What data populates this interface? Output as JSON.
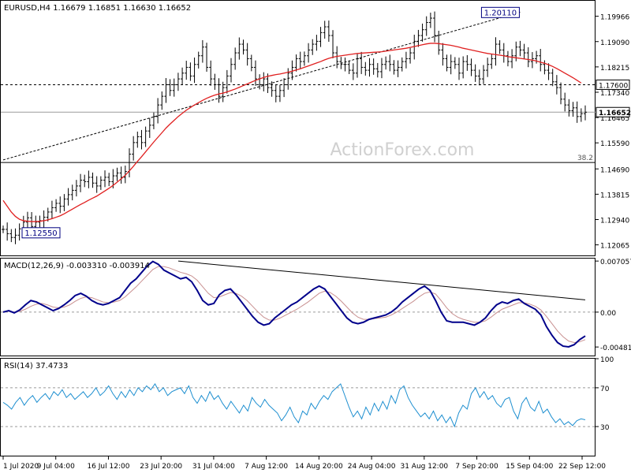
{
  "chart_data": {
    "type": "line",
    "panels": {
      "price": {
        "header": "EURUSD,H4  1.16679 1.16851 1.16630 1.16652",
        "ylim": [
          1.117,
          1.205
        ],
        "y_ticks": [
          "1.19966",
          "1.19090",
          "1.18215",
          "1.17340",
          "1.16465",
          "1.15590",
          "1.14690",
          "1.13815",
          "1.12940",
          "1.12065"
        ],
        "y_tick_values": [
          1.19966,
          1.1909,
          1.18215,
          1.1734,
          1.16465,
          1.1559,
          1.1469,
          1.13815,
          1.1294,
          1.12065
        ],
        "current_price_label": "1.16652",
        "current_price": 1.16652,
        "level_label": "1.17600",
        "level": 1.176,
        "fib_label": "38.2",
        "fib_level": 1.1491,
        "high_annotation": "1.20110",
        "high_value": 1.2011,
        "low_annotation": "1.12550",
        "low_value": 1.1255,
        "watermark": "ActionForex.com",
        "trendline": [
          [
            0,
            1.15
          ],
          [
            127,
            1.2011
          ]
        ],
        "close": [
          1.126,
          1.1245,
          1.1232,
          1.124,
          1.1262,
          1.1285,
          1.13,
          1.127,
          1.1285,
          1.129,
          1.1302,
          1.132,
          1.1335,
          1.135,
          1.134,
          1.1365,
          1.138,
          1.1395,
          1.141,
          1.143,
          1.1425,
          1.144,
          1.142,
          1.141,
          1.143,
          1.144,
          1.1425,
          1.1445,
          1.1455,
          1.144,
          1.146,
          1.152,
          1.156,
          1.158,
          1.156,
          1.16,
          1.162,
          1.165,
          1.169,
          1.172,
          1.176,
          1.174,
          1.176,
          1.178,
          1.18,
          1.182,
          1.179,
          1.183,
          1.186,
          1.189,
          1.182,
          1.178,
          1.176,
          1.172,
          1.175,
          1.179,
          1.183,
          1.187,
          1.19,
          1.188,
          1.185,
          1.182,
          1.178,
          1.176,
          1.178,
          1.175,
          1.174,
          1.172,
          1.174,
          1.176,
          1.18,
          1.182,
          1.185,
          1.184,
          1.186,
          1.188,
          1.19,
          1.191,
          1.194,
          1.196,
          1.193,
          1.187,
          1.184,
          1.183,
          1.183,
          1.181,
          1.18,
          1.185,
          1.182,
          1.181,
          1.183,
          1.1815,
          1.1805,
          1.183,
          1.184,
          1.183,
          1.181,
          1.182,
          1.184,
          1.185,
          1.187,
          1.191,
          1.193,
          1.195,
          1.1975,
          1.199,
          1.193,
          1.188,
          1.185,
          1.182,
          1.184,
          1.183,
          1.18,
          1.184,
          1.183,
          1.181,
          1.179,
          1.178,
          1.181,
          1.183,
          1.185,
          1.19,
          1.188,
          1.186,
          1.184,
          1.186,
          1.189,
          1.188,
          1.187,
          1.184,
          1.185,
          1.186,
          1.183,
          1.181,
          1.18,
          1.177,
          1.175,
          1.171,
          1.169,
          1.167,
          1.168,
          1.165,
          1.166,
          1.1665
        ],
        "ma": [
          1.136,
          1.134,
          1.132,
          1.1305,
          1.1295,
          1.129,
          1.1288,
          1.1287,
          1.1287,
          1.1288,
          1.129,
          1.1293,
          1.1297,
          1.1302,
          1.1307,
          1.1314,
          1.1322,
          1.133,
          1.1338,
          1.1346,
          1.1353,
          1.1361,
          1.1368,
          1.1375,
          1.1384,
          1.1393,
          1.1402,
          1.1412,
          1.1423,
          1.1435,
          1.1447,
          1.1462,
          1.1478,
          1.1495,
          1.1511,
          1.1528,
          1.1545,
          1.1562,
          1.1578,
          1.1594,
          1.161,
          1.1624,
          1.1637,
          1.165,
          1.1661,
          1.1672,
          1.1681,
          1.169,
          1.1698,
          1.1706,
          1.1713,
          1.1719,
          1.1724,
          1.1728,
          1.1731,
          1.1735,
          1.174,
          1.1745,
          1.1751,
          1.1757,
          1.1763,
          1.1769,
          1.1775,
          1.178,
          1.1785,
          1.1789,
          1.1792,
          1.1795,
          1.1797,
          1.18,
          1.1803,
          1.1807,
          1.1811,
          1.1815,
          1.182,
          1.1825,
          1.183,
          1.1835,
          1.184,
          1.1846,
          1.1851,
          1.1855,
          1.1858,
          1.186,
          1.1862,
          1.1864,
          1.1866,
          1.1868,
          1.1869,
          1.187,
          1.1871,
          1.1872,
          1.1873,
          1.1874,
          1.1876,
          1.1878,
          1.188,
          1.1882,
          1.1884,
          1.1886,
          1.1889,
          1.1892,
          1.1895,
          1.1898,
          1.1901,
          1.1903,
          1.1903,
          1.1902,
          1.19,
          1.1898,
          1.1896,
          1.1893,
          1.189,
          1.1886,
          1.1883,
          1.188,
          1.1877,
          1.1874,
          1.1871,
          1.1868,
          1.1866,
          1.1864,
          1.1862,
          1.186,
          1.1857,
          1.1855,
          1.1853,
          1.1851,
          1.1849,
          1.1847,
          1.1845,
          1.1842,
          1.1838,
          1.1834,
          1.1829,
          1.1823,
          1.1816,
          1.1808,
          1.18,
          1.1792,
          1.1784,
          1.1775,
          1.1766
        ]
      },
      "macd": {
        "header": "MACD(12,26,9) -0.003310 -0.003914",
        "ylim": [
          -0.006,
          0.0074
        ],
        "y_ticks": [
          "0.007057",
          "0.00",
          "-0.004818"
        ],
        "y_tick_values": [
          0.007057,
          0.0,
          -0.004818
        ],
        "macd": [
          0.0,
          0.0002,
          -0.0001,
          0.0003,
          0.001,
          0.0016,
          0.0014,
          0.001,
          0.0006,
          0.0002,
          0.0005,
          0.001,
          0.0016,
          0.0023,
          0.0026,
          0.0022,
          0.0016,
          0.0012,
          0.001,
          0.0012,
          0.0016,
          0.002,
          0.003,
          0.004,
          0.0046,
          0.0055,
          0.0064,
          0.007,
          0.0066,
          0.0058,
          0.0054,
          0.005,
          0.0046,
          0.0048,
          0.0042,
          0.003,
          0.0016,
          0.001,
          0.0012,
          0.0024,
          0.003,
          0.0032,
          0.0024,
          0.0014,
          0.0004,
          -0.0006,
          -0.0014,
          -0.0018,
          -0.0016,
          -0.0008,
          -0.0002,
          0.0004,
          0.001,
          0.0014,
          0.002,
          0.0026,
          0.0032,
          0.0036,
          0.0032,
          0.0022,
          0.0012,
          0.0002,
          -0.0008,
          -0.0014,
          -0.0016,
          -0.0014,
          -0.001,
          -0.0008,
          -0.0006,
          -0.0004,
          0.0,
          0.0006,
          0.0014,
          0.002,
          0.0026,
          0.0032,
          0.0036,
          0.003,
          0.0016,
          0.0,
          -0.0012,
          -0.0014,
          -0.0014,
          -0.0014,
          -0.0016,
          -0.0018,
          -0.0014,
          -0.0008,
          0.0002,
          0.001,
          0.0014,
          0.0012,
          0.0016,
          0.0018,
          0.0012,
          0.0008,
          0.0004,
          -0.0004,
          -0.002,
          -0.0032,
          -0.0042,
          -0.0047,
          -0.0048,
          -0.0045,
          -0.0038,
          -0.0033
        ],
        "signal": [
          0.0001,
          0.0001,
          0.0,
          0.0001,
          0.0004,
          0.0008,
          0.0011,
          0.0012,
          0.001,
          0.0007,
          0.0006,
          0.0007,
          0.001,
          0.0015,
          0.0019,
          0.0021,
          0.002,
          0.0017,
          0.0014,
          0.0013,
          0.0014,
          0.0016,
          0.0021,
          0.0028,
          0.0035,
          0.0043,
          0.0051,
          0.0059,
          0.0063,
          0.0063,
          0.0061,
          0.0058,
          0.0055,
          0.0053,
          0.005,
          0.0044,
          0.0035,
          0.0026,
          0.002,
          0.0021,
          0.0024,
          0.0027,
          0.0026,
          0.0022,
          0.0016,
          0.0008,
          0.0,
          -0.0007,
          -0.0011,
          -0.0011,
          -0.0008,
          -0.0004,
          0.0,
          0.0004,
          0.0009,
          0.0014,
          0.002,
          0.0026,
          0.0029,
          0.0027,
          0.0022,
          0.0015,
          0.0007,
          -0.0001,
          -0.0007,
          -0.001,
          -0.001,
          -0.0009,
          -0.0008,
          -0.0007,
          -0.0004,
          0.0,
          0.0005,
          0.001,
          0.0015,
          0.0021,
          0.0026,
          0.0028,
          0.0025,
          0.0016,
          0.0006,
          -0.0002,
          -0.0007,
          -0.001,
          -0.0012,
          -0.0014,
          -0.0014,
          -0.0012,
          -0.0007,
          -0.0001,
          0.0004,
          0.0007,
          0.001,
          0.0013,
          0.0013,
          0.0011,
          0.0008,
          0.0003,
          -0.0006,
          -0.0016,
          -0.0026,
          -0.0034,
          -0.004,
          -0.0042,
          -0.0041,
          -0.0038
        ],
        "trendline": [
          [
            0.007057,
            0
          ],
          [
            0.0017,
            1
          ]
        ]
      },
      "rsi": {
        "header": "RSI(14) 37.4733",
        "ylim": [
          0,
          100
        ],
        "y_ticks": [
          "100",
          "70",
          "30"
        ],
        "y_tick_values": [
          100,
          70,
          30
        ],
        "values": [
          55,
          52,
          48,
          55,
          60,
          52,
          58,
          62,
          55,
          60,
          64,
          58,
          66,
          62,
          68,
          60,
          64,
          58,
          62,
          66,
          60,
          64,
          70,
          62,
          66,
          72,
          64,
          58,
          66,
          60,
          68,
          62,
          70,
          66,
          72,
          68,
          74,
          66,
          70,
          62,
          66,
          68,
          70,
          64,
          72,
          60,
          54,
          62,
          56,
          66,
          58,
          62,
          54,
          48,
          56,
          50,
          44,
          52,
          46,
          60,
          54,
          50,
          58,
          52,
          48,
          44,
          36,
          42,
          50,
          40,
          34,
          46,
          42,
          54,
          48,
          56,
          62,
          58,
          66,
          70,
          74,
          62,
          50,
          40,
          46,
          38,
          50,
          42,
          54,
          46,
          56,
          48,
          62,
          54,
          68,
          72,
          60,
          52,
          46,
          40,
          44,
          38,
          46,
          36,
          42,
          34,
          40,
          30,
          44,
          52,
          48,
          64,
          70,
          60,
          66,
          58,
          62,
          54,
          50,
          58,
          60,
          46,
          38,
          54,
          60,
          50,
          46,
          56,
          44,
          48,
          40,
          34,
          38,
          32,
          35,
          31,
          36,
          38,
          37
        ]
      }
    },
    "x_tick_labels": [
      "1 Jul 2020",
      "9 Jul 04:00",
      "16 Jul 12:00",
      "23 Jul 20:00",
      "31 Jul 04:00",
      "7 Aug 12:00",
      "14 Aug 20:00",
      "24 Aug 04:00",
      "31 Aug 12:00",
      "7 Sep 20:00",
      "15 Sep 04:00",
      "22 Sep 12:00"
    ],
    "colors": {
      "candles": "#000000",
      "ma": "#e02020",
      "macd": "#00008b",
      "signal": "#c89090",
      "rsi": "#1e8fd0",
      "guide": "#9a9a9a",
      "axis": "#000000"
    }
  }
}
